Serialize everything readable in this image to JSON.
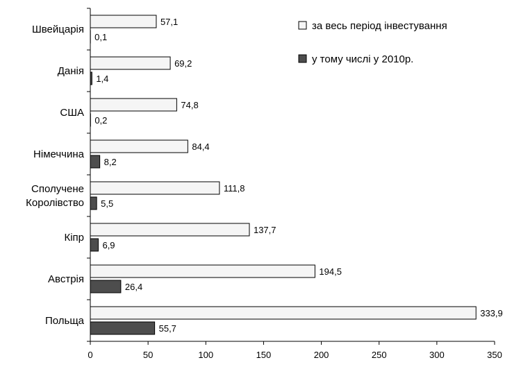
{
  "chart_data": {
    "type": "bar",
    "orientation": "horizontal",
    "categories": [
      [
        "Швейцарія"
      ],
      [
        "Данія"
      ],
      [
        "США"
      ],
      [
        "Німеччина"
      ],
      [
        "Сполучене",
        "Королівство"
      ],
      [
        "Кіпр"
      ],
      [
        "Австрія"
      ],
      [
        "Польща"
      ]
    ],
    "series": [
      {
        "name": "за весь період інвестування",
        "color": "#f5f5f5",
        "values": [
          57.1,
          69.2,
          74.8,
          84.4,
          111.8,
          137.7,
          194.5,
          333.9
        ],
        "labels": [
          "57,1",
          "69,2",
          "74,8",
          "84,4",
          "111,8",
          "137,7",
          "194,5",
          "333,9"
        ]
      },
      {
        "name": "у тому числі у 2010р.",
        "color": "#4d4d4d",
        "values": [
          0.1,
          1.4,
          0.2,
          8.2,
          5.5,
          6.9,
          26.4,
          55.7
        ],
        "labels": [
          "0,1",
          "1,4",
          "0,2",
          "8,2",
          "5,5",
          "6,9",
          "26,4",
          "55,7"
        ]
      }
    ],
    "xlim": [
      0,
      350
    ],
    "xticks": [
      0,
      50,
      100,
      150,
      200,
      250,
      300,
      350
    ],
    "grid": false,
    "legend_position": "top-right"
  }
}
